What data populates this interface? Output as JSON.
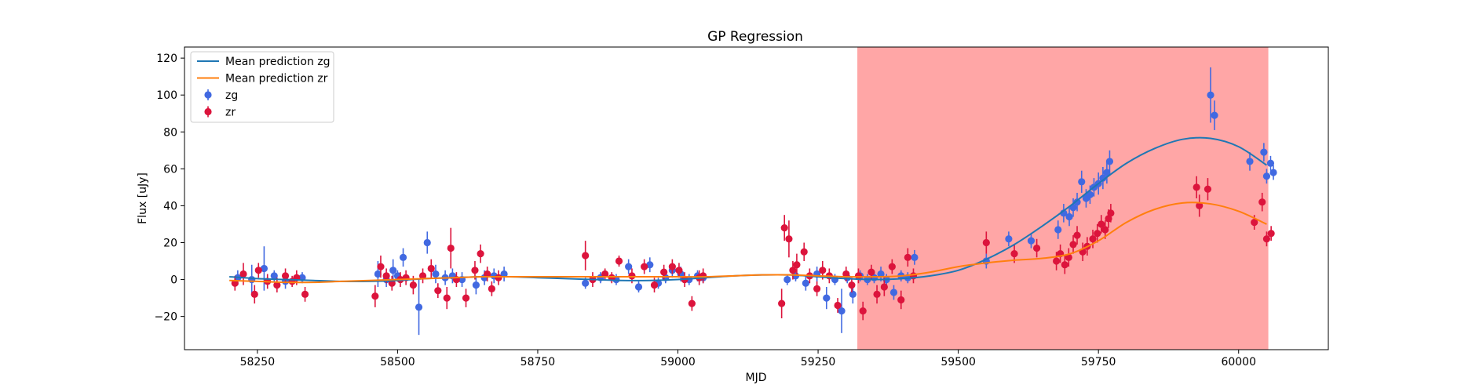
{
  "chart_data": {
    "type": "scatter",
    "title": "GP Regression",
    "xlabel": "MJD",
    "ylabel": "Flux [uJy]",
    "xlim": [
      58120,
      60160
    ],
    "ylim": [
      -38,
      126
    ],
    "xticks": [
      58250,
      58500,
      58750,
      59000,
      59250,
      59500,
      59750,
      60000
    ],
    "yticks": [
      -20,
      0,
      20,
      40,
      60,
      80,
      100,
      120
    ],
    "grid": false,
    "legend_position": "upper-left",
    "shaded_region": {
      "x_start": 59320,
      "x_end": 60053,
      "color": "#ffa6a6"
    },
    "series": [
      {
        "name": "Mean prediction zg",
        "kind": "line",
        "color": "#1f77b4",
        "x": [
          58200,
          58250,
          58300,
          58350,
          58400,
          58450,
          58500,
          58550,
          58600,
          58650,
          58700,
          58750,
          58800,
          58850,
          58900,
          58950,
          59000,
          59050,
          59100,
          59150,
          59200,
          59250,
          59300,
          59350,
          59400,
          59450,
          59500,
          59550,
          59600,
          59650,
          59700,
          59750,
          59800,
          59850,
          59900,
          59950,
          60000,
          60050
        ],
        "y": [
          1.5,
          0.5,
          0.0,
          -0.5,
          -1.0,
          -1.0,
          -0.5,
          0.5,
          1.0,
          1.5,
          1.5,
          1.0,
          0.5,
          0.0,
          -0.5,
          -0.5,
          0.0,
          1.0,
          2.0,
          2.5,
          2.5,
          1.5,
          0.5,
          0.0,
          0.5,
          2.0,
          5.0,
          11.0,
          19.0,
          29.0,
          40.0,
          52.0,
          63.0,
          71.0,
          76.0,
          76.5,
          72.0,
          62.0
        ]
      },
      {
        "name": "Mean prediction zr",
        "kind": "line",
        "color": "#ff7f0e",
        "x": [
          58200,
          58250,
          58300,
          58350,
          58400,
          58450,
          58500,
          58550,
          58600,
          58650,
          58700,
          58750,
          58800,
          58850,
          58900,
          58950,
          59000,
          59050,
          59100,
          59150,
          59200,
          59250,
          59300,
          59350,
          59400,
          59450,
          59500,
          59550,
          59600,
          59650,
          59700,
          59750,
          59800,
          59850,
          59900,
          59950,
          60000,
          60050
        ],
        "y": [
          -0.5,
          -1.0,
          -1.5,
          -1.5,
          -1.0,
          -0.5,
          0.0,
          0.5,
          1.0,
          1.5,
          1.5,
          1.5,
          1.5,
          1.5,
          1.5,
          1.5,
          1.5,
          1.5,
          2.0,
          2.5,
          2.5,
          2.0,
          1.5,
          1.5,
          2.0,
          4.0,
          7.0,
          9.0,
          10.5,
          11.5,
          14.0,
          21.0,
          31.0,
          38.0,
          41.5,
          41.0,
          37.0,
          30.0
        ]
      },
      {
        "name": "zg",
        "kind": "errorbar",
        "color": "#4169e1",
        "x": [
          58215,
          58240,
          58262,
          58280,
          58300,
          58330,
          58465,
          58480,
          58492,
          58500,
          58510,
          58538,
          58553,
          58568,
          58585,
          58598,
          58615,
          58640,
          58655,
          58672,
          58690,
          58835,
          58862,
          58890,
          58912,
          58930,
          58950,
          58965,
          58978,
          58990,
          59005,
          59020,
          59035,
          59045,
          59195,
          59210,
          59228,
          59248,
          59265,
          59280,
          59292,
          59302,
          59312,
          59325,
          59338,
          59350,
          59362,
          59372,
          59385,
          59398,
          59410,
          59422,
          59550,
          59590,
          59630,
          59678,
          59688,
          59698,
          59705,
          59712,
          59720,
          59728,
          59735,
          59742,
          59750,
          59758,
          59765,
          59770,
          59950,
          59957,
          60020,
          60045,
          60050,
          60057,
          60062
        ],
        "y": [
          1,
          0,
          6,
          2,
          -1,
          1,
          3,
          0,
          5,
          2,
          12,
          -15,
          20,
          3,
          1,
          2,
          0,
          -3,
          1,
          2,
          3,
          -2,
          1,
          0,
          7,
          -4,
          8,
          -2,
          1,
          5,
          3,
          0,
          2,
          1,
          0,
          2,
          -2,
          3,
          -10,
          0,
          -17,
          1,
          -8,
          2,
          0,
          1,
          3,
          0,
          -7,
          2,
          1,
          12,
          10,
          22,
          21,
          27,
          36,
          34,
          39,
          42,
          53,
          44,
          46,
          50,
          52,
          55,
          58,
          64,
          100,
          89,
          64,
          69,
          56,
          63,
          58
        ],
        "yerr": [
          4,
          8,
          12,
          3,
          4,
          3,
          7,
          4,
          6,
          3,
          5,
          15,
          6,
          5,
          4,
          4,
          4,
          5,
          4,
          4,
          4,
          3,
          3,
          3,
          4,
          3,
          4,
          3,
          3,
          4,
          4,
          3,
          3,
          3,
          3,
          3,
          4,
          4,
          6,
          3,
          12,
          3,
          5,
          3,
          3,
          3,
          4,
          3,
          4,
          3,
          3,
          4,
          4,
          4,
          4,
          5,
          5,
          5,
          5,
          5,
          6,
          5,
          5,
          5,
          6,
          6,
          6,
          6,
          15,
          8,
          5,
          5,
          4,
          4,
          4
        ]
      },
      {
        "name": "zr",
        "kind": "errorbar",
        "color": "#dc143c",
        "x": [
          58210,
          58225,
          58245,
          58252,
          58268,
          58285,
          58300,
          58312,
          58320,
          58335,
          58460,
          58470,
          58480,
          58490,
          58505,
          58515,
          58528,
          58545,
          58560,
          58572,
          58588,
          58595,
          58605,
          58622,
          58638,
          58648,
          58660,
          58668,
          58680,
          58835,
          58848,
          58870,
          58882,
          58895,
          58918,
          58940,
          58958,
          58975,
          58990,
          59002,
          59012,
          59025,
          59038,
          59045,
          59185,
          59190,
          59198,
          59205,
          59212,
          59225,
          59235,
          59248,
          59258,
          59270,
          59285,
          59300,
          59310,
          59322,
          59330,
          59345,
          59355,
          59368,
          59382,
          59398,
          59410,
          59420,
          59550,
          59600,
          59640,
          59675,
          59682,
          59690,
          59697,
          59705,
          59712,
          59722,
          59730,
          59740,
          59748,
          59755,
          59762,
          59768,
          59772,
          59925,
          59930,
          59945,
          60028,
          60042,
          60050,
          60058
        ],
        "y": [
          -2,
          3,
          -8,
          5,
          -1,
          -3,
          2,
          -1,
          1,
          -8,
          -9,
          7,
          2,
          -2,
          0,
          1,
          -3,
          2,
          6,
          -6,
          -10,
          17,
          0,
          -10,
          5,
          14,
          3,
          -5,
          1,
          13,
          0,
          3,
          1,
          10,
          2,
          7,
          -3,
          4,
          7,
          5,
          0,
          -13,
          1,
          2,
          -13,
          28,
          22,
          5,
          8,
          15,
          2,
          -5,
          5,
          2,
          -14,
          3,
          -3,
          2,
          -17,
          4,
          -8,
          -4,
          7,
          -11,
          12,
          2,
          20,
          14,
          17,
          10,
          14,
          8,
          12,
          19,
          24,
          15,
          18,
          22,
          25,
          30,
          27,
          33,
          36,
          50,
          40,
          49,
          31,
          42,
          22,
          25
        ],
        "yerr": [
          4,
          6,
          5,
          4,
          4,
          4,
          4,
          3,
          4,
          4,
          6,
          6,
          4,
          4,
          4,
          4,
          5,
          4,
          5,
          4,
          6,
          11,
          4,
          5,
          5,
          5,
          4,
          4,
          4,
          8,
          4,
          3,
          3,
          3,
          4,
          4,
          4,
          4,
          4,
          4,
          4,
          4,
          4,
          4,
          8,
          7,
          10,
          5,
          6,
          5,
          4,
          4,
          5,
          4,
          4,
          4,
          4,
          4,
          5,
          4,
          5,
          5,
          4,
          5,
          5,
          4,
          6,
          5,
          5,
          5,
          5,
          5,
          5,
          5,
          5,
          5,
          5,
          5,
          5,
          5,
          5,
          5,
          5,
          6,
          6,
          6,
          4,
          5,
          4,
          4
        ]
      }
    ]
  }
}
